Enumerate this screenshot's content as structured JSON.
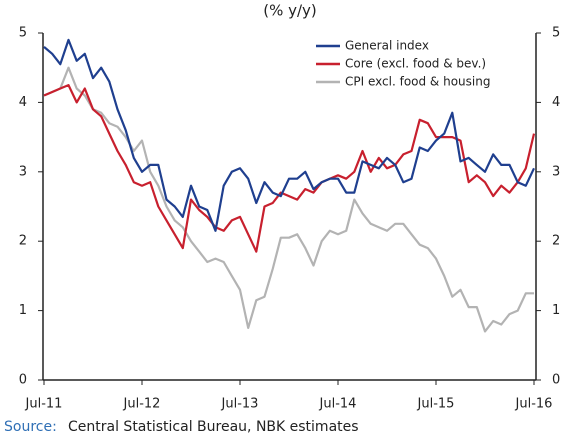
{
  "chart_data": {
    "type": "line",
    "title": "(% y/y)",
    "source_label": "Source:",
    "source": "Central Statistical Bureau, NBK estimates",
    "categories": [
      "Jul-11",
      null,
      null,
      null,
      null,
      null,
      null,
      null,
      null,
      null,
      null,
      null,
      "Jul-12",
      null,
      null,
      null,
      null,
      null,
      null,
      null,
      null,
      null,
      null,
      null,
      "Jul-13",
      null,
      null,
      null,
      null,
      null,
      null,
      null,
      null,
      null,
      null,
      null,
      "Jul-14",
      null,
      null,
      null,
      null,
      null,
      null,
      null,
      null,
      null,
      null,
      null,
      "Jul-15",
      null,
      null,
      null,
      null,
      null,
      null,
      null,
      null,
      null,
      null,
      null,
      "Jul-16"
    ],
    "series": [
      {
        "name": "General index",
        "color": "#1f3f8f",
        "values": [
          4.8,
          4.7,
          4.55,
          4.9,
          4.6,
          4.7,
          4.35,
          4.5,
          4.3,
          3.9,
          3.6,
          3.2,
          3.0,
          3.1,
          3.1,
          2.6,
          2.5,
          2.35,
          2.8,
          2.5,
          2.45,
          2.15,
          2.8,
          3.0,
          3.05,
          2.9,
          2.55,
          2.85,
          2.7,
          2.65,
          2.9,
          2.9,
          3.0,
          2.75,
          2.85,
          2.9,
          2.9,
          2.7,
          2.7,
          3.15,
          3.1,
          3.05,
          3.2,
          3.1,
          2.85,
          2.9,
          3.35,
          3.3,
          3.45,
          3.55,
          3.85,
          3.15,
          3.2,
          3.1,
          3.0,
          3.25,
          3.1,
          3.1,
          2.85,
          2.8,
          3.05
        ]
      },
      {
        "name": "Core (excl. food & bev.)",
        "color": "#c8202e",
        "values": [
          4.1,
          4.15,
          4.2,
          4.25,
          4.0,
          4.2,
          3.9,
          3.8,
          3.55,
          3.3,
          3.1,
          2.85,
          2.8,
          2.85,
          2.5,
          2.3,
          2.1,
          1.9,
          2.6,
          2.45,
          2.35,
          2.2,
          2.15,
          2.3,
          2.35,
          2.1,
          1.85,
          2.5,
          2.55,
          2.7,
          2.65,
          2.6,
          2.75,
          2.7,
          2.85,
          2.9,
          2.95,
          2.9,
          3.0,
          3.3,
          3.0,
          3.2,
          3.05,
          3.1,
          3.25,
          3.3,
          3.75,
          3.7,
          3.5,
          3.5,
          3.5,
          3.45,
          2.85,
          2.95,
          2.85,
          2.65,
          2.8,
          2.7,
          2.85,
          3.05,
          3.55
        ]
      },
      {
        "name": "CPI excl. food & housing",
        "color": "#b3b3b3",
        "values": [
          4.1,
          4.15,
          4.2,
          4.5,
          4.2,
          4.1,
          3.9,
          3.85,
          3.7,
          3.65,
          3.5,
          3.3,
          3.45,
          3.0,
          2.8,
          2.5,
          2.3,
          2.2,
          2.0,
          1.85,
          1.7,
          1.75,
          1.7,
          1.5,
          1.3,
          0.75,
          1.15,
          1.2,
          1.6,
          2.05,
          2.05,
          2.1,
          1.9,
          1.65,
          2.0,
          2.15,
          2.1,
          2.15,
          2.6,
          2.4,
          2.25,
          2.2,
          2.15,
          2.25,
          2.25,
          2.1,
          1.95,
          1.9,
          1.75,
          1.5,
          1.2,
          1.3,
          1.05,
          1.05,
          0.7,
          0.85,
          0.8,
          0.95,
          1.0,
          1.25,
          1.25
        ]
      }
    ],
    "ylim": [
      0,
      5
    ],
    "yticks": [
      0,
      1,
      2,
      3,
      4,
      5
    ],
    "y2lim": [
      0,
      5
    ],
    "y2ticks": [
      0,
      1,
      2,
      3,
      4,
      5
    ],
    "legend": "top-right"
  }
}
